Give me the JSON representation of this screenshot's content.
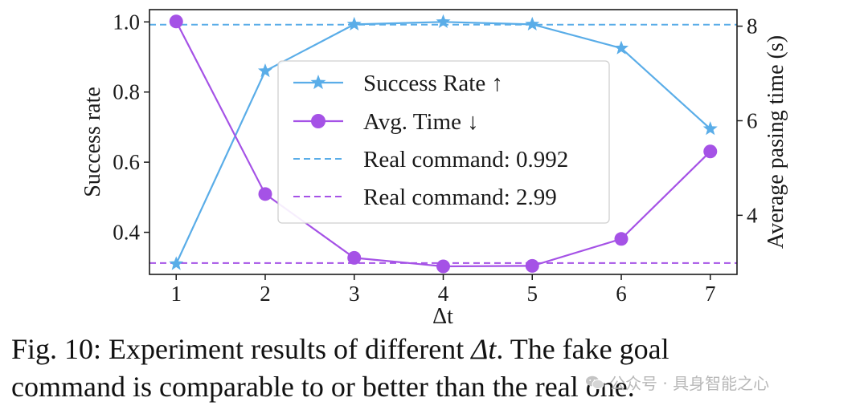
{
  "colors": {
    "success": "#5aade8",
    "time": "#a552e6",
    "axis": "#1a1a1a"
  },
  "chart_data": {
    "type": "line",
    "x": [
      1,
      2,
      3,
      4,
      5,
      6,
      7
    ],
    "xlabel": "Δt",
    "ylabel_left": "Success rate",
    "ylabel_right": "Average pasing time (s)",
    "xlim": [
      0.7,
      7.3
    ],
    "ylim_left": [
      0.28,
      1.035
    ],
    "ylim_right": [
      2.75,
      8.35
    ],
    "yticks_left": [
      0.4,
      0.6,
      0.8,
      1.0
    ],
    "yticks_left_labels": [
      "0.4",
      "0.6",
      "0.8",
      "1.0"
    ],
    "yticks_right": [
      4,
      6,
      8
    ],
    "yticks_right_labels": [
      "4",
      "6",
      "8"
    ],
    "xticks_labels": [
      "1",
      "2",
      "3",
      "4",
      "5",
      "6",
      "7"
    ],
    "series": [
      {
        "name": "Success Rate ↑",
        "axis": "left",
        "marker": "star",
        "values": [
          0.31,
          0.86,
          0.993,
          1.0,
          0.993,
          0.925,
          0.695
        ]
      },
      {
        "name": "Avg. Time ↓",
        "axis": "right",
        "marker": "circle",
        "values": [
          8.1,
          4.45,
          3.1,
          2.92,
          2.93,
          3.5,
          5.35
        ]
      }
    ],
    "reference_lines": [
      {
        "name": "Real command: 0.992",
        "axis": "left",
        "value": 0.992
      },
      {
        "name": "Real command: 2.99",
        "axis": "right",
        "value": 2.99
      }
    ],
    "legend_position": "center"
  },
  "caption": {
    "line1_prefix": "Fig. 10: Experiment results of different ",
    "line1_var": "Δt",
    "line1_suffix": ". The fake goal",
    "line2": "command is comparable to or better than the real one."
  },
  "watermark": {
    "text": "公众号 · 具身智能之心",
    "icon": "wechat-icon"
  }
}
